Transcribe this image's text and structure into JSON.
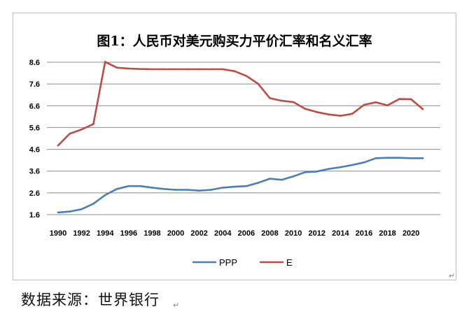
{
  "chart_data": {
    "type": "line",
    "title": "图1：人民币对美元购买力平价汇率和名义汇率",
    "xlabel": "",
    "ylabel": "",
    "x": [
      1990,
      1991,
      1992,
      1993,
      1994,
      1995,
      1996,
      1997,
      1998,
      1999,
      2000,
      2001,
      2002,
      2003,
      2004,
      2005,
      2006,
      2007,
      2008,
      2009,
      2010,
      2011,
      2012,
      2013,
      2014,
      2015,
      2016,
      2017,
      2018,
      2019,
      2020,
      2021
    ],
    "x_tick_labels": [
      "1990",
      "1992",
      "1994",
      "1996",
      "1998",
      "2000",
      "2002",
      "2004",
      "2006",
      "2008",
      "2010",
      "2012",
      "2014",
      "2016",
      "2018",
      "2020"
    ],
    "y_tick_labels": [
      "1.6",
      "2.6",
      "3.6",
      "4.6",
      "5.6",
      "6.6",
      "7.6",
      "8.6"
    ],
    "ylim": [
      1.6,
      8.6
    ],
    "xlim": [
      1990,
      2021
    ],
    "grid": "horizontal",
    "legend_position": "bottom",
    "series": [
      {
        "name": "PPP",
        "color": "#4a7ebb",
        "values": [
          1.7,
          1.74,
          1.85,
          2.1,
          2.5,
          2.78,
          2.91,
          2.91,
          2.84,
          2.78,
          2.74,
          2.74,
          2.7,
          2.74,
          2.84,
          2.88,
          2.91,
          3.06,
          3.25,
          3.2,
          3.36,
          3.55,
          3.58,
          3.7,
          3.78,
          3.88,
          4.0,
          4.19,
          4.21,
          4.21,
          4.19,
          4.19
        ]
      },
      {
        "name": "E",
        "color": "#be4b48",
        "values": [
          4.78,
          5.32,
          5.51,
          5.76,
          8.62,
          8.35,
          8.31,
          8.29,
          8.28,
          8.28,
          8.28,
          8.28,
          8.28,
          8.28,
          8.28,
          8.19,
          7.97,
          7.61,
          6.95,
          6.83,
          6.77,
          6.46,
          6.31,
          6.2,
          6.14,
          6.23,
          6.64,
          6.76,
          6.62,
          6.91,
          6.9,
          6.45
        ]
      }
    ]
  },
  "source_caption": "数据来源：世界银行",
  "paragraph_mark": "↵"
}
